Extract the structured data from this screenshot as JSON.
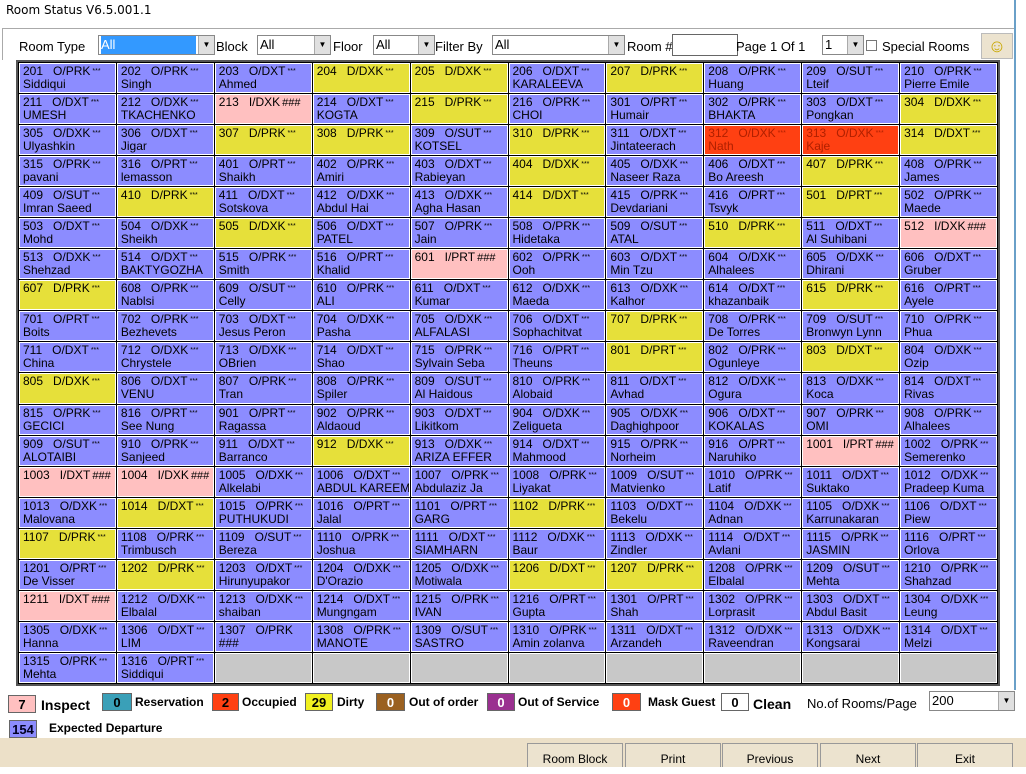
{
  "window": {
    "title": "Room Status V6.5.001.1"
  },
  "toolbar": {
    "room_type_label": "Room Type",
    "room_type_value": "All",
    "block_label": "Block",
    "block_value": "All",
    "floor_label": "Floor",
    "floor_value": "All",
    "filter_label": "Filter By",
    "filter_value": "All",
    "room_num_label": "Room #",
    "room_num_value": "",
    "page_text": "Page 1 Of 1",
    "page_value": "1",
    "special_rooms_label": "Special Rooms",
    "special_rooms_checked": false,
    "smiley_icon": "smiley-face-icon"
  },
  "status_colors": {
    "b": "#8c8cff",
    "y": "#e6e03a",
    "i": "#ffc0c0",
    "o": "#ff4012",
    "empty": "#c8c8c8"
  },
  "rooms": [
    [
      "201",
      "O/PRK",
      "***",
      "Siddiqui",
      "b"
    ],
    [
      "202",
      "O/PRK",
      "***",
      "Singh",
      "b"
    ],
    [
      "203",
      "O/DXT",
      "***",
      "Ahmed",
      "b"
    ],
    [
      "204",
      "D/DXK",
      "***",
      "",
      "y"
    ],
    [
      "205",
      "D/DXK",
      "***",
      "",
      "y"
    ],
    [
      "206",
      "O/DXT",
      "***",
      "KARALEEVA",
      "b"
    ],
    [
      "207",
      "D/PRK",
      "***",
      "",
      "y"
    ],
    [
      "208",
      "O/PRK",
      "***",
      "Huang",
      "b"
    ],
    [
      "209",
      "O/SUT",
      "***",
      "Lteif",
      "b"
    ],
    [
      "210",
      "O/PRK",
      "***",
      "Pierre Emile",
      "b"
    ],
    [
      "211",
      "O/DXT",
      "***",
      "UMESH",
      "b"
    ],
    [
      "212",
      "O/DXK",
      "***",
      "TKACHENKO",
      "b"
    ],
    [
      "213",
      "I/DXK",
      "###",
      "",
      "i"
    ],
    [
      "214",
      "O/DXT",
      "***",
      "KOGTA",
      "b"
    ],
    [
      "215",
      "D/PRK",
      "***",
      "",
      "y"
    ],
    [
      "216",
      "O/PRK",
      "***",
      "CHOI",
      "b"
    ],
    [
      "301",
      "O/PRT",
      "***",
      "Humair",
      "b"
    ],
    [
      "302",
      "O/PRK",
      "***",
      "BHAKTA",
      "b"
    ],
    [
      "303",
      "O/DXT",
      "***",
      "Pongkan",
      "b"
    ],
    [
      "304",
      "D/DXK",
      "***",
      "",
      "y"
    ],
    [
      "305",
      "O/DXK",
      "***",
      "Ulyashkin",
      "b"
    ],
    [
      "306",
      "O/DXT",
      "***",
      "Jigar",
      "b"
    ],
    [
      "307",
      "D/PRK",
      "***",
      "",
      "y"
    ],
    [
      "308",
      "D/PRK",
      "***",
      "",
      "y"
    ],
    [
      "309",
      "O/SUT",
      "***",
      "KOTSEL",
      "b"
    ],
    [
      "310",
      "D/PRK",
      "***",
      "",
      "y"
    ],
    [
      "311",
      "O/DXT",
      "***",
      "Jintateerach",
      "b"
    ],
    [
      "312",
      "O/DXK",
      "***",
      "Nath",
      "o"
    ],
    [
      "313",
      "O/DXK",
      "***",
      "Kaje",
      "o"
    ],
    [
      "314",
      "D/DXT",
      "***",
      "",
      "y"
    ],
    [
      "315",
      "O/PRK",
      "***",
      "pavani",
      "b"
    ],
    [
      "316",
      "O/PRT",
      "***",
      "lemasson",
      "b"
    ],
    [
      "401",
      "O/PRT",
      "***",
      "Shaikh",
      "b"
    ],
    [
      "402",
      "O/PRK",
      "***",
      "Amiri",
      "b"
    ],
    [
      "403",
      "O/DXT",
      "***",
      "Rabieyan",
      "b"
    ],
    [
      "404",
      "D/DXK",
      "***",
      "",
      "y"
    ],
    [
      "405",
      "O/DXK",
      "***",
      "Naseer Raza",
      "b"
    ],
    [
      "406",
      "O/DXT",
      "***",
      "Bo Areesh",
      "b"
    ],
    [
      "407",
      "D/PRK",
      "***",
      "",
      "y"
    ],
    [
      "408",
      "O/PRK",
      "***",
      "James",
      "b"
    ],
    [
      "409",
      "O/SUT",
      "***",
      "Imran Saeed",
      "b"
    ],
    [
      "410",
      "D/PRK",
      "***",
      "",
      "y"
    ],
    [
      "411",
      "O/DXT",
      "***",
      "Sotskova",
      "b"
    ],
    [
      "412",
      "O/DXK",
      "***",
      "Abdul Hai",
      "b"
    ],
    [
      "413",
      "O/DXK",
      "***",
      "Agha Hasan",
      "b"
    ],
    [
      "414",
      "D/DXT",
      "***",
      "",
      "y"
    ],
    [
      "415",
      "O/PRK",
      "***",
      "Devdariani",
      "b"
    ],
    [
      "416",
      "O/PRT",
      "***",
      "Tsvyk",
      "b"
    ],
    [
      "501",
      "D/PRT",
      "***",
      "",
      "y"
    ],
    [
      "502",
      "O/PRK",
      "***",
      "Maede",
      "b"
    ],
    [
      "503",
      "O/DXT",
      "***",
      "Mohd",
      "b"
    ],
    [
      "504",
      "O/DXK",
      "***",
      "Sheikh",
      "b"
    ],
    [
      "505",
      "D/DXK",
      "***",
      "",
      "y"
    ],
    [
      "506",
      "O/DXT",
      "***",
      "PATEL",
      "b"
    ],
    [
      "507",
      "O/PRK",
      "***",
      "Jain",
      "b"
    ],
    [
      "508",
      "O/PRK",
      "***",
      "Hidetaka",
      "b"
    ],
    [
      "509",
      "O/SUT",
      "***",
      "ATAL",
      "b"
    ],
    [
      "510",
      "D/PRK",
      "***",
      "",
      "y"
    ],
    [
      "511",
      "O/DXT",
      "***",
      "Al Suhibani",
      "b"
    ],
    [
      "512",
      "I/DXK",
      "###",
      "",
      "i"
    ],
    [
      "513",
      "O/DXK",
      "***",
      "Shehzad",
      "b"
    ],
    [
      "514",
      "O/DXT",
      "***",
      "BAKTYGOZHA",
      "b"
    ],
    [
      "515",
      "O/PRK",
      "***",
      "Smith",
      "b"
    ],
    [
      "516",
      "O/PRT",
      "***",
      "Khalid",
      "b"
    ],
    [
      "601",
      "I/PRT",
      "###",
      "",
      "i"
    ],
    [
      "602",
      "O/PRK",
      "***",
      "Ooh",
      "b"
    ],
    [
      "603",
      "O/DXT",
      "***",
      "Min Tzu",
      "b"
    ],
    [
      "604",
      "O/DXK",
      "***",
      "Alhalees",
      "b"
    ],
    [
      "605",
      "O/DXK",
      "***",
      "Dhirani",
      "b"
    ],
    [
      "606",
      "O/DXT",
      "***",
      "Gruber",
      "b"
    ],
    [
      "607",
      "D/PRK",
      "***",
      "",
      "y"
    ],
    [
      "608",
      "O/PRK",
      "***",
      "Nablsi",
      "b"
    ],
    [
      "609",
      "O/SUT",
      "***",
      "Celly",
      "b"
    ],
    [
      "610",
      "O/PRK",
      "***",
      "ALI",
      "b"
    ],
    [
      "611",
      "O/DXT",
      "***",
      "Kumar",
      "b"
    ],
    [
      "612",
      "O/DXK",
      "***",
      "Maeda",
      "b"
    ],
    [
      "613",
      "O/DXK",
      "***",
      "Kalhor",
      "b"
    ],
    [
      "614",
      "O/DXT",
      "***",
      "khazanbaik",
      "b"
    ],
    [
      "615",
      "D/PRK",
      "***",
      "",
      "y"
    ],
    [
      "616",
      "O/PRT",
      "***",
      "Ayele",
      "b"
    ],
    [
      "701",
      "O/PRT",
      "***",
      "Boits",
      "b"
    ],
    [
      "702",
      "O/PRK",
      "***",
      "Bezhevets",
      "b"
    ],
    [
      "703",
      "O/DXT",
      "***",
      "Jesus Peron",
      "b"
    ],
    [
      "704",
      "O/DXK",
      "***",
      "Pasha",
      "b"
    ],
    [
      "705",
      "O/DXK",
      "***",
      "ALFALASI",
      "b"
    ],
    [
      "706",
      "O/DXT",
      "***",
      "Sophachitvat",
      "b"
    ],
    [
      "707",
      "D/PRK",
      "***",
      "",
      "y"
    ],
    [
      "708",
      "O/PRK",
      "***",
      "De Torres",
      "b"
    ],
    [
      "709",
      "O/SUT",
      "***",
      "Bronwyn Lynn",
      "b"
    ],
    [
      "710",
      "O/PRK",
      "***",
      "Phua",
      "b"
    ],
    [
      "711",
      "O/DXT",
      "***",
      "China",
      "b"
    ],
    [
      "712",
      "O/DXK",
      "***",
      "Chrystele",
      "b"
    ],
    [
      "713",
      "O/DXK",
      "***",
      "OBrien",
      "b"
    ],
    [
      "714",
      "O/DXT",
      "***",
      "Shao",
      "b"
    ],
    [
      "715",
      "O/PRK",
      "***",
      "Sylvain Seba",
      "b"
    ],
    [
      "716",
      "O/PRT",
      "***",
      "Theuns",
      "b"
    ],
    [
      "801",
      "D/PRT",
      "***",
      "",
      "y"
    ],
    [
      "802",
      "O/PRK",
      "***",
      "Ogunleye",
      "b"
    ],
    [
      "803",
      "D/DXT",
      "***",
      "",
      "y"
    ],
    [
      "804",
      "O/DXK",
      "***",
      "Ozip",
      "b"
    ],
    [
      "805",
      "D/DXK",
      "***",
      "",
      "y"
    ],
    [
      "806",
      "O/DXT",
      "***",
      "VENU",
      "b"
    ],
    [
      "807",
      "O/PRK",
      "***",
      "Tran",
      "b"
    ],
    [
      "808",
      "O/PRK",
      "***",
      "Spiler",
      "b"
    ],
    [
      "809",
      "O/SUT",
      "***",
      "Al Haidous",
      "b"
    ],
    [
      "810",
      "O/PRK",
      "***",
      "Alobaid",
      "b"
    ],
    [
      "811",
      "O/DXT",
      "***",
      "Avhad",
      "b"
    ],
    [
      "812",
      "O/DXK",
      "***",
      "Ogura",
      "b"
    ],
    [
      "813",
      "O/DXK",
      "***",
      "Koca",
      "b"
    ],
    [
      "814",
      "O/DXT",
      "***",
      "Rivas",
      "b"
    ],
    [
      "815",
      "O/PRK",
      "***",
      "GECICI",
      "b"
    ],
    [
      "816",
      "O/PRT",
      "***",
      "See Nung",
      "b"
    ],
    [
      "901",
      "O/PRT",
      "***",
      "Ragassa",
      "b"
    ],
    [
      "902",
      "O/PRK",
      "***",
      "Aldaoud",
      "b"
    ],
    [
      "903",
      "O/DXT",
      "***",
      "Likitkom",
      "b"
    ],
    [
      "904",
      "O/DXK",
      "***",
      "Zeligueta",
      "b"
    ],
    [
      "905",
      "O/DXK",
      "***",
      "Daghighpoor",
      "b"
    ],
    [
      "906",
      "O/DXT",
      "***",
      "KOKALAS",
      "b"
    ],
    [
      "907",
      "O/PRK",
      "***",
      "OMI",
      "b"
    ],
    [
      "908",
      "O/PRK",
      "***",
      "Alhalees",
      "b"
    ],
    [
      "909",
      "O/SUT",
      "***",
      "ALOTAIBI",
      "b"
    ],
    [
      "910",
      "O/PRK",
      "***",
      "Sanjeed",
      "b"
    ],
    [
      "911",
      "O/DXT",
      "***",
      "Barranco",
      "b"
    ],
    [
      "912",
      "D/DXK",
      "***",
      "",
      "y"
    ],
    [
      "913",
      "O/DXK",
      "***",
      "ARIZA EFFER",
      "b"
    ],
    [
      "914",
      "O/DXT",
      "***",
      "Mahmood",
      "b"
    ],
    [
      "915",
      "O/PRK",
      "***",
      "Norheim",
      "b"
    ],
    [
      "916",
      "O/PRT",
      "***",
      "Naruhiko",
      "b"
    ],
    [
      "1001",
      "I/PRT",
      "###",
      "",
      "i"
    ],
    [
      "1002",
      "O/PRK",
      "***",
      "Semerenko",
      "b"
    ],
    [
      "1003",
      "I/DXT",
      "###",
      "",
      "i"
    ],
    [
      "1004",
      "I/DXK",
      "###",
      "",
      "i"
    ],
    [
      "1005",
      "O/DXK",
      "***",
      "Alkelabi",
      "b"
    ],
    [
      "1006",
      "O/DXT",
      "***",
      "ABDUL KAREEM",
      "b"
    ],
    [
      "1007",
      "O/PRK",
      "***",
      "Abdulaziz Ja",
      "b"
    ],
    [
      "1008",
      "O/PRK",
      "***",
      "Liyakat",
      "b"
    ],
    [
      "1009",
      "O/SUT",
      "***",
      "Matvienko",
      "b"
    ],
    [
      "1010",
      "O/PRK",
      "***",
      "Latif",
      "b"
    ],
    [
      "1011",
      "O/DXT",
      "***",
      "Suktako",
      "b"
    ],
    [
      "1012",
      "O/DXK",
      "***",
      "Pradeep Kuma",
      "b"
    ],
    [
      "1013",
      "O/DXK",
      "***",
      "Malovana",
      "b"
    ],
    [
      "1014",
      "D/DXT",
      "***",
      "",
      "y"
    ],
    [
      "1015",
      "O/PRK",
      "***",
      "PUTHUKUDI",
      "b"
    ],
    [
      "1016",
      "O/PRT",
      "***",
      "Jalal",
      "b"
    ],
    [
      "1101",
      "O/PRT",
      "***",
      "GARG",
      "b"
    ],
    [
      "1102",
      "D/PRK",
      "***",
      "",
      "y"
    ],
    [
      "1103",
      "O/DXT",
      "***",
      "Bekelu",
      "b"
    ],
    [
      "1104",
      "O/DXK",
      "***",
      "Adnan",
      "b"
    ],
    [
      "1105",
      "O/DXK",
      "***",
      "Karrunakaran",
      "b"
    ],
    [
      "1106",
      "O/DXT",
      "***",
      "Piew",
      "b"
    ],
    [
      "1107",
      "D/PRK",
      "***",
      "",
      "y"
    ],
    [
      "1108",
      "O/PRK",
      "***",
      "Trimbusch",
      "b"
    ],
    [
      "1109",
      "O/SUT",
      "***",
      "Bereza",
      "b"
    ],
    [
      "1110",
      "O/PRK",
      "***",
      "Joshua",
      "b"
    ],
    [
      "1111",
      "O/DXT",
      "***",
      "SIAMHARN",
      "b"
    ],
    [
      "1112",
      "O/DXK",
      "***",
      "Baur",
      "b"
    ],
    [
      "1113",
      "O/DXK",
      "***",
      "Zindler",
      "b"
    ],
    [
      "1114",
      "O/DXT",
      "***",
      "Avlani",
      "b"
    ],
    [
      "1115",
      "O/PRK",
      "***",
      "JASMIN",
      "b"
    ],
    [
      "1116",
      "O/PRT",
      "***",
      "Orlova",
      "b"
    ],
    [
      "1201",
      "O/PRT",
      "***",
      "De Visser",
      "b"
    ],
    [
      "1202",
      "D/PRK",
      "***",
      "",
      "y"
    ],
    [
      "1203",
      "O/DXT",
      "***",
      "Hirunyupakor",
      "b"
    ],
    [
      "1204",
      "O/DXK",
      "***",
      "D'Orazio",
      "b"
    ],
    [
      "1205",
      "O/DXK",
      "***",
      "Motiwala",
      "b"
    ],
    [
      "1206",
      "D/DXT",
      "***",
      "",
      "y"
    ],
    [
      "1207",
      "D/PRK",
      "***",
      "",
      "y"
    ],
    [
      "1208",
      "O/PRK",
      "***",
      "Elbalal",
      "b"
    ],
    [
      "1209",
      "O/SUT",
      "***",
      "Mehta",
      "b"
    ],
    [
      "1210",
      "O/PRK",
      "***",
      "Shahzad",
      "b"
    ],
    [
      "1211",
      "I/DXT",
      "###",
      "",
      "i"
    ],
    [
      "1212",
      "O/DXK",
      "***",
      "Elbalal",
      "b"
    ],
    [
      "1213",
      "O/DXK",
      "***",
      "shaiban",
      "b"
    ],
    [
      "1214",
      "O/DXT",
      "***",
      "Mungngam",
      "b"
    ],
    [
      "1215",
      "O/PRK",
      "***",
      "IVAN",
      "b"
    ],
    [
      "1216",
      "O/PRT",
      "***",
      "Gupta",
      "b"
    ],
    [
      "1301",
      "O/PRT",
      "***",
      "Shah",
      "b"
    ],
    [
      "1302",
      "O/PRK",
      "***",
      "Lorprasit",
      "b"
    ],
    [
      "1303",
      "O/DXT",
      "***",
      "Abdul Basit",
      "b"
    ],
    [
      "1304",
      "O/DXK",
      "***",
      "Leung",
      "b"
    ],
    [
      "1305",
      "O/DXK",
      "***",
      "Hanna",
      "b"
    ],
    [
      "1306",
      "O/DXT",
      "***",
      "LIM",
      "b"
    ],
    [
      "1307",
      "O/PRK",
      "",
      "###",
      "b"
    ],
    [
      "1308",
      "O/PRK",
      "***",
      "MANOTE",
      "b"
    ],
    [
      "1309",
      "O/SUT",
      "***",
      "SASTRO",
      "b"
    ],
    [
      "1310",
      "O/PRK",
      "***",
      "Amin zolanva",
      "b"
    ],
    [
      "1311",
      "O/DXT",
      "***",
      "Arzandeh",
      "b"
    ],
    [
      "1312",
      "O/DXK",
      "***",
      "Raveendran",
      "b"
    ],
    [
      "1313",
      "O/DXK",
      "***",
      "Kongsarai",
      "b"
    ],
    [
      "1314",
      "O/DXT",
      "***",
      "Melzi",
      "b"
    ],
    [
      "1315",
      "O/PRK",
      "***",
      "Mehta",
      "b"
    ],
    [
      "1316",
      "O/PRT",
      "***",
      "Siddiqui",
      "b"
    ]
  ],
  "empty_cells": 8,
  "legend": {
    "inspect": {
      "count": "7",
      "label": "Inspect",
      "color": "#ffc0c0"
    },
    "reservation": {
      "count": "0",
      "label": "Reservation",
      "color": "#3aa0b8"
    },
    "occupied": {
      "count": "2",
      "label": "Occupied",
      "color": "#ff4012"
    },
    "dirty": {
      "count": "29",
      "label": "Dirty",
      "color": "#f0f020"
    },
    "out_of_order": {
      "count": "0",
      "label": "Out of order",
      "color": "#9a6020"
    },
    "out_of_service": {
      "count": "0",
      "label": "Out of Service",
      "color": "#9a3090"
    },
    "mask_guest": {
      "count": "0",
      "label": "Mask Guest",
      "color": "#ff4012"
    },
    "clean": {
      "count": "0",
      "label": "Clean",
      "color": "#ffffff"
    },
    "expected_departure": {
      "count": "154",
      "label": "Expected Departure",
      "color": "#8c8cff"
    }
  },
  "rooms_per_page": {
    "label": "No.of Rooms/Page",
    "value": "200"
  },
  "buttons": {
    "room_block": "Room Block",
    "print": "Print",
    "previous": "Previous",
    "next": "Next",
    "exit": "Exit"
  }
}
